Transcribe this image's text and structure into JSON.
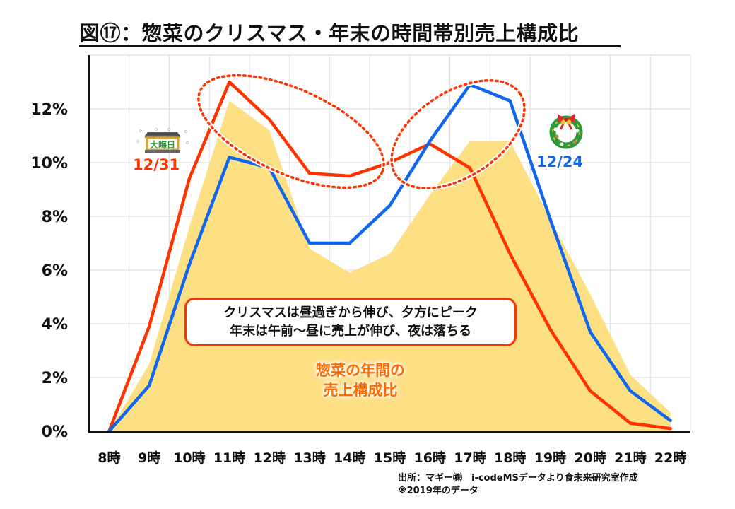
{
  "title": "図⑰：惣菜のクリスマス・年末の時間帯別売上構成比",
  "callout": {
    "line1": "クリスマスは昼過ぎから伸び、夕方にピーク",
    "line2": "年末は午前～昼に売上が伸び、夜は落ちる"
  },
  "area_label": {
    "line1": "惣菜の年間の",
    "line2": "売上構成比"
  },
  "labels": {
    "dec31": "12/31",
    "dec24": "12/24"
  },
  "icons": {
    "dec31": "omisoka-sign-icon",
    "dec24": "christmas-wreath-icon"
  },
  "source": {
    "line1": "出所：マギー㈱　i-codeMSデータより食未来研究室作成",
    "line2": "※2019年のデータ"
  },
  "colors": {
    "dec31": "#ff3300",
    "dec24": "#1166ee",
    "annual": "#fddf84",
    "highlight": "#ff3300"
  },
  "chart_data": {
    "type": "line",
    "title": "図⑰：惣菜のクリスマス・年末の時間帯別売上構成比",
    "xlabel": "",
    "ylabel": "",
    "categories": [
      "8時",
      "9時",
      "10時",
      "11時",
      "12時",
      "13時",
      "14時",
      "15時",
      "16時",
      "17時",
      "18時",
      "19時",
      "20時",
      "21時",
      "22時"
    ],
    "ylim": [
      0,
      14
    ],
    "yticks": [
      0,
      2,
      4,
      6,
      8,
      10,
      12
    ],
    "ytick_labels": [
      "0%",
      "2%",
      "4%",
      "6%",
      "8%",
      "10%",
      "12%"
    ],
    "grid": true,
    "series": [
      {
        "name": "惣菜の年間の売上構成比",
        "type": "area",
        "values": [
          0,
          2.5,
          7.6,
          12.3,
          11.2,
          6.8,
          5.9,
          6.6,
          8.8,
          10.8,
          10.8,
          7.9,
          5.1,
          2.1,
          0.7
        ]
      },
      {
        "name": "12/31",
        "type": "line",
        "values": [
          0,
          3.9,
          9.4,
          13.0,
          11.6,
          9.6,
          9.5,
          10.0,
          10.7,
          9.8,
          6.6,
          3.8,
          1.5,
          0.3,
          0.1
        ]
      },
      {
        "name": "12/24",
        "type": "line",
        "values": [
          0,
          1.7,
          6.2,
          10.2,
          9.8,
          7.0,
          7.0,
          8.4,
          10.8,
          12.9,
          12.3,
          7.9,
          3.7,
          1.5,
          0.4
        ]
      }
    ],
    "annotations": [
      {
        "type": "dotted-ellipse",
        "around": "11時–14時 (12/31 midday peak)"
      },
      {
        "type": "dotted-ellipse",
        "around": "15時–18時 (12/24 evening peak)"
      }
    ]
  }
}
